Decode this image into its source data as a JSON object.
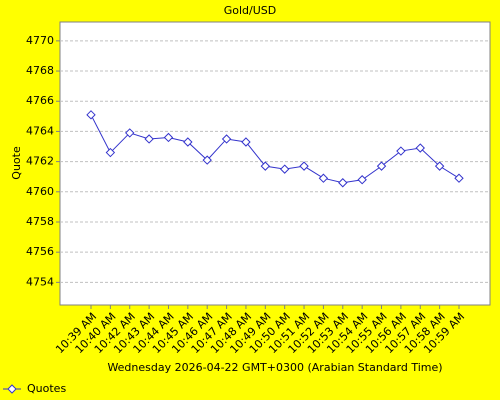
{
  "chart_data": {
    "type": "line",
    "title": "Gold/USD",
    "x_label": "Wednesday 2026-04-22 GMT+0300 (Arabian Standard Time)",
    "y_label": "Quote",
    "categories": [
      "10:39 AM",
      "10:40 AM",
      "10:42 AM",
      "10:43 AM",
      "10:44 AM",
      "10:45 AM",
      "10:46 AM",
      "10:47 AM",
      "10:48 AM",
      "10:49 AM",
      "10:50 AM",
      "10:51 AM",
      "10:52 AM",
      "10:53 AM",
      "10:54 AM",
      "10:55 AM",
      "10:56 AM",
      "10:57 AM",
      "10:58 AM",
      "10:59 AM"
    ],
    "series": [
      {
        "name": "Quotes",
        "color": "#3333cc",
        "values": [
          4765.1,
          4762.6,
          4763.9,
          4763.5,
          4763.6,
          4763.3,
          4762.1,
          4763.5,
          4763.3,
          4761.7,
          4761.5,
          4761.7,
          4760.9,
          4760.6,
          4760.8,
          4761.7,
          4762.7,
          4762.9,
          4761.7,
          4760.9
        ]
      }
    ],
    "ylim": [
      4752.5,
      4771.25
    ],
    "yticks": [
      4754,
      4756,
      4758,
      4760,
      4762,
      4764,
      4766,
      4768,
      4770
    ],
    "grid": true,
    "legend": "bottom-left"
  }
}
